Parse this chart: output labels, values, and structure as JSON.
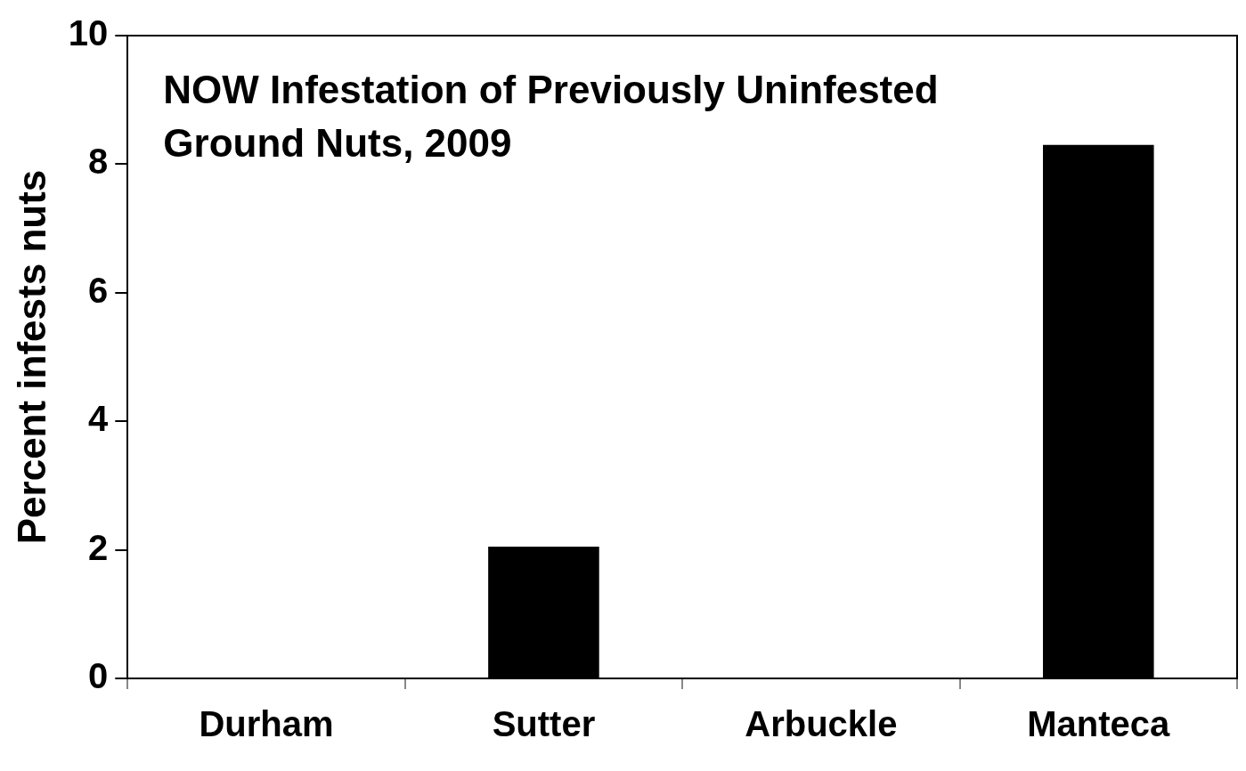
{
  "chart_data": {
    "type": "bar",
    "title": "NOW Infestation of Previously Uninfested Ground Nuts, 2009",
    "ylabel": "Percent infests nuts",
    "categories": [
      "Durham",
      "Sutter",
      "Arbuckle",
      "Manteca"
    ],
    "values": [
      0,
      2.05,
      0,
      8.3
    ],
    "color": "#000000",
    "ylim": [
      0,
      10
    ],
    "yticks": [
      0,
      2,
      4,
      6,
      8,
      10
    ],
    "grid": false,
    "legend": false
  }
}
